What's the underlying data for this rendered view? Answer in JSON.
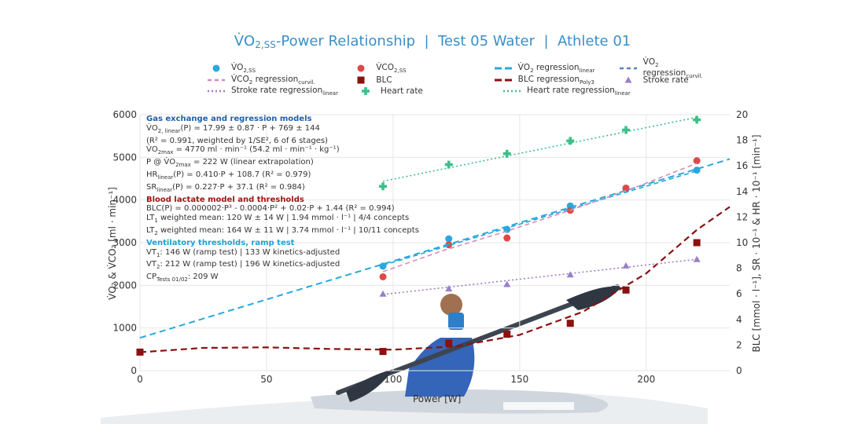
{
  "title": {
    "pre": "V̇O",
    "sub": "2,SS",
    "post": "-Power Relationship  |  Test 05 Water  |  Athlete 01"
  },
  "legend": [
    [
      {
        "key": "vo2",
        "text": "V̇O",
        "sub": "2,SS",
        "tail": ""
      },
      {
        "key": "vco2",
        "text": "V̇CO",
        "sub": "2,SS",
        "tail": ""
      },
      {
        "key": "vo2lin",
        "text": "V̇O",
        "sub": "2",
        "tail": " regression",
        "sub2": "linear"
      },
      {
        "key": "vo2curv",
        "text": "V̇O",
        "sub": "2",
        "tail": " regression",
        "sub2": "curvil."
      }
    ],
    [
      {
        "key": "vco2curv",
        "text": "V̇CO",
        "sub": "2",
        "tail": " regression",
        "sub2": "curvil."
      },
      {
        "key": "blc",
        "text": "BLC",
        "sub": "",
        "tail": ""
      },
      {
        "key": "blcfit",
        "text": "BLC regression",
        "sub": "Poly3",
        "tail": ""
      },
      {
        "key": "sr",
        "text": "Stroke rate",
        "sub": "",
        "tail": ""
      }
    ],
    [
      {
        "key": "srfit",
        "text": "Stroke rate regression",
        "sub": "linear",
        "tail": ""
      },
      {
        "key": "hr",
        "text": "Heart rate",
        "sub": "",
        "tail": ""
      },
      {
        "key": "hrfit",
        "text": "Heart rate regression",
        "sub": "linear",
        "tail": ""
      }
    ]
  ],
  "annotations": {
    "gas_header": "Gas exchange and regression models",
    "gas_lines": [
      {
        "a": "V̇O",
        "s": "2, linear",
        "b": "(P) = 17.99 ± 0.87 · P + 769 ± 144"
      },
      {
        "a": "(R² = 0.991, weighted by 1/SE², 6 of 6 stages)",
        "s": "",
        "b": ""
      },
      {
        "a": "V̇O",
        "s": "2max",
        "b": " = 4770 ml · min⁻¹  (54.2 ml · min⁻¹ · kg⁻¹)"
      },
      {
        "a": "P @ V̇O",
        "s": "2max",
        "b": " = 222 W  (linear extrapolation)"
      },
      {
        "a": "HR",
        "s": "linear",
        "b": "(P) = 0.410·P + 108.7  (R² = 0.979)"
      },
      {
        "a": "SR",
        "s": "linear",
        "b": "(P) = 0.227·P + 37.1  (R² = 0.984)"
      }
    ],
    "blc_header": "Blood lactate model and thresholds",
    "blc_lines": [
      {
        "a": "BLC(P) = 0.000002·P³ - 0.0004·P² + 0.02·P + 1.44  (R² = 0.994)",
        "s": "",
        "b": ""
      },
      {
        "a": "LT",
        "s": "1",
        "b": " weighted mean: 120 W ± 14 W | 1.94 mmol · l⁻¹ | 4/4 concepts"
      },
      {
        "a": "LT",
        "s": "2",
        "b": " weighted mean: 164 W ± 11 W | 3.74 mmol · l⁻¹ | 10/11 concepts"
      }
    ],
    "vt_header": "Ventilatory thresholds, ramp test",
    "vt_lines": [
      {
        "a": "VT",
        "s": "1",
        "b": ": 146 W (ramp test) | 133 W kinetics-adjusted"
      },
      {
        "a": "VT",
        "s": "2",
        "b": ": 212 W (ramp test) | 196 W kinetics-adjusted"
      },
      {
        "a": "CP",
        "s": "Tests 01/02",
        "b": ": 209 W"
      }
    ]
  },
  "axis_labels": {
    "x": "Power [W]",
    "y_left": "V̇O₂ & V̇CO₂ [ml · min⁻¹]",
    "y_right": "BLC [mmol · l⁻¹], SR · 10⁻¹ & HR · 10⁻¹ [min⁻¹]"
  },
  "colors": {
    "vo2": "#29a8df",
    "vco2": "#e04848",
    "vco2curv": "#d98cb8",
    "blc": "#8b1010",
    "hr": "#3dbf8a",
    "sr": "#9b7fc8",
    "grid": "#e6e6e6",
    "paddle": "#3d4550"
  },
  "chart_data": {
    "type": "scatter",
    "x_axis": {
      "min": 0,
      "max": 233,
      "ticks": [
        0,
        50,
        100,
        150,
        200
      ]
    },
    "y_left": {
      "min": 0,
      "max": 6000,
      "ticks": [
        0,
        1000,
        2000,
        3000,
        4000,
        5000,
        6000
      ]
    },
    "y_right": {
      "min": 0,
      "max": 20,
      "ticks": [
        0,
        2,
        4,
        6,
        8,
        10,
        12,
        14,
        16,
        18,
        20
      ]
    },
    "series": [
      {
        "name": "V̇O2,SS",
        "axis": "left",
        "kind": "points",
        "color_key": "vo2",
        "x": [
          96,
          122,
          145,
          170,
          192,
          220
        ],
        "y": [
          2450,
          3090,
          3310,
          3860,
          4250,
          4700
        ]
      },
      {
        "name": "V̇CO2,SS",
        "axis": "left",
        "kind": "points",
        "color_key": "vco2",
        "x": [
          96,
          122,
          145,
          170,
          192,
          220
        ],
        "y": [
          2200,
          2950,
          3110,
          3760,
          4280,
          4920
        ]
      },
      {
        "name": "V̇O2 regression linear",
        "axis": "left",
        "kind": "line",
        "color_key": "vo2",
        "x": [
          0,
          233
        ],
        "y": [
          769,
          4960
        ]
      },
      {
        "name": "V̇O2 regression curvil.",
        "axis": "left",
        "kind": "line",
        "color_key": "vo2",
        "x": [
          96,
          220
        ],
        "y": [
          2470,
          4680
        ]
      },
      {
        "name": "V̇CO2 regression curvil.",
        "axis": "left",
        "kind": "line",
        "color_key": "vco2curv",
        "x": [
          96,
          120,
          145,
          170,
          195,
          220
        ],
        "y": [
          2320,
          2820,
          3270,
          3760,
          4280,
          4860
        ]
      },
      {
        "name": "BLC",
        "axis": "right",
        "kind": "points",
        "color_key": "blc",
        "x": [
          0,
          96,
          122,
          145,
          170,
          192,
          220
        ],
        "y": [
          1.45,
          1.5,
          2.15,
          2.85,
          3.7,
          6.3,
          10.0
        ]
      },
      {
        "name": "BLC regression Poly3",
        "axis": "right",
        "kind": "line",
        "color_key": "blc",
        "x": [
          0,
          25,
          50,
          75,
          100,
          125,
          150,
          175,
          200,
          220,
          233
        ],
        "y": [
          1.44,
          1.78,
          1.82,
          1.7,
          1.64,
          1.9,
          2.8,
          4.6,
          7.6,
          11.0,
          12.8
        ]
      },
      {
        "name": "Stroke rate",
        "axis": "right",
        "kind": "points",
        "color_key": "sr",
        "x": [
          96,
          122,
          145,
          170,
          192,
          220
        ],
        "y": [
          6.0,
          6.4,
          6.75,
          7.5,
          8.2,
          8.7
        ]
      },
      {
        "name": "Stroke rate regression linear",
        "axis": "right",
        "kind": "line",
        "color_key": "sr",
        "x": [
          96,
          220
        ],
        "y": [
          5.95,
          8.7
        ]
      },
      {
        "name": "Heart rate",
        "axis": "right",
        "kind": "points",
        "color_key": "hr",
        "x": [
          96,
          122,
          145,
          170,
          192,
          220
        ],
        "y": [
          14.4,
          16.1,
          16.95,
          17.95,
          18.8,
          19.6
        ]
      },
      {
        "name": "Heart rate regression linear",
        "axis": "right",
        "kind": "line",
        "color_key": "hr",
        "x": [
          96,
          220
        ],
        "y": [
          14.8,
          19.8
        ]
      }
    ]
  }
}
